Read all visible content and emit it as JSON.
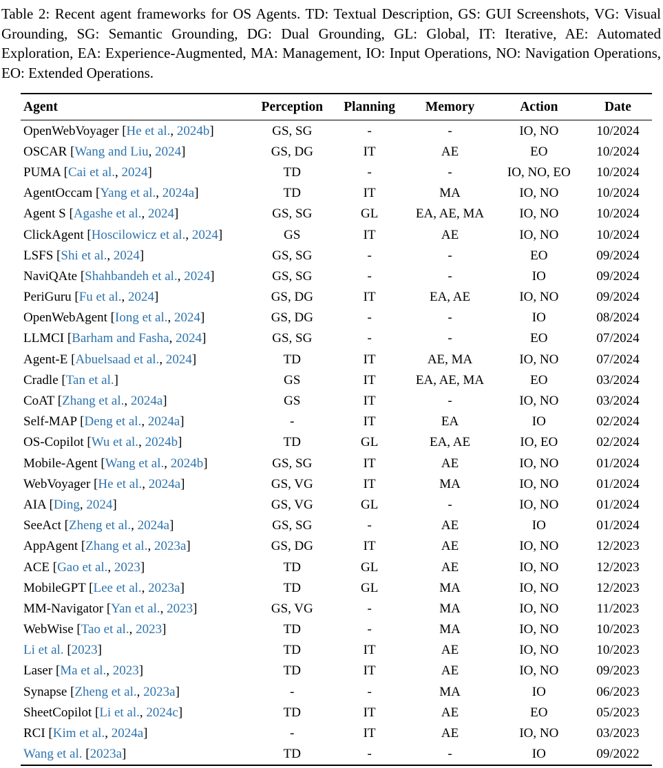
{
  "caption": "Table 2: Recent agent frameworks for OS Agents. TD: Textual Description, GS: GUI Screenshots, VG: Visual Grounding, SG: Semantic Grounding, DG: Dual Grounding, GL: Global, IT: Iterative, AE: Automated Exploration, EA: Experience-Augmented, MA: Management, IO: Input Operations, NO: Navigation Operations, EO: Extended Operations.",
  "link_color": "#2e74ae",
  "table": {
    "headers": [
      "Agent",
      "Perception",
      "Planning",
      "Memory",
      "Action",
      "Date"
    ],
    "rows": [
      {
        "agent": [
          {
            "t": "OpenWebVoyager [",
            "link": false
          },
          {
            "t": "He et al.",
            "link": true
          },
          {
            "t": ", ",
            "link": false
          },
          {
            "t": "2024b",
            "link": true
          },
          {
            "t": "]",
            "link": false
          }
        ],
        "perception": "GS, SG",
        "planning": "-",
        "memory": "-",
        "action": "IO, NO",
        "date": "10/2024"
      },
      {
        "agent": [
          {
            "t": "OSCAR [",
            "link": false
          },
          {
            "t": "Wang and Liu",
            "link": true
          },
          {
            "t": ", ",
            "link": false
          },
          {
            "t": "2024",
            "link": true
          },
          {
            "t": "]",
            "link": false
          }
        ],
        "perception": "GS, DG",
        "planning": "IT",
        "memory": "AE",
        "action": "EO",
        "date": "10/2024"
      },
      {
        "agent": [
          {
            "t": "PUMA [",
            "link": false
          },
          {
            "t": "Cai et al.",
            "link": true
          },
          {
            "t": ", ",
            "link": false
          },
          {
            "t": "2024",
            "link": true
          },
          {
            "t": "]",
            "link": false
          }
        ],
        "perception": "TD",
        "planning": "-",
        "memory": "-",
        "action": "IO, NO, EO",
        "date": "10/2024"
      },
      {
        "agent": [
          {
            "t": "AgentOccam [",
            "link": false
          },
          {
            "t": "Yang et al.",
            "link": true
          },
          {
            "t": ", ",
            "link": false
          },
          {
            "t": "2024a",
            "link": true
          },
          {
            "t": "]",
            "link": false
          }
        ],
        "perception": "TD",
        "planning": "IT",
        "memory": "MA",
        "action": "IO, NO",
        "date": "10/2024"
      },
      {
        "agent": [
          {
            "t": "Agent S [",
            "link": false
          },
          {
            "t": "Agashe et al.",
            "link": true
          },
          {
            "t": ", ",
            "link": false
          },
          {
            "t": "2024",
            "link": true
          },
          {
            "t": "]",
            "link": false
          }
        ],
        "perception": "GS, SG",
        "planning": "GL",
        "memory": "EA, AE, MA",
        "action": "IO, NO",
        "date": "10/2024"
      },
      {
        "agent": [
          {
            "t": "ClickAgent [",
            "link": false
          },
          {
            "t": "Hoscilowicz et al.",
            "link": true
          },
          {
            "t": ", ",
            "link": false
          },
          {
            "t": "2024",
            "link": true
          },
          {
            "t": "]",
            "link": false
          }
        ],
        "perception": "GS",
        "planning": "IT",
        "memory": "AE",
        "action": "IO, NO",
        "date": "10/2024"
      },
      {
        "agent": [
          {
            "t": "LSFS [",
            "link": false
          },
          {
            "t": "Shi et al.",
            "link": true
          },
          {
            "t": ", ",
            "link": false
          },
          {
            "t": "2024",
            "link": true
          },
          {
            "t": "]",
            "link": false
          }
        ],
        "perception": "GS, SG",
        "planning": "-",
        "memory": "-",
        "action": "EO",
        "date": "09/2024"
      },
      {
        "agent": [
          {
            "t": "NaviQAte [",
            "link": false
          },
          {
            "t": "Shahbandeh et al.",
            "link": true
          },
          {
            "t": ", ",
            "link": false
          },
          {
            "t": "2024",
            "link": true
          },
          {
            "t": "]",
            "link": false
          }
        ],
        "perception": "GS, SG",
        "planning": "-",
        "memory": "-",
        "action": "IO",
        "date": "09/2024"
      },
      {
        "agent": [
          {
            "t": "PeriGuru [",
            "link": false
          },
          {
            "t": "Fu et al.",
            "link": true
          },
          {
            "t": ", ",
            "link": false
          },
          {
            "t": "2024",
            "link": true
          },
          {
            "t": "]",
            "link": false
          }
        ],
        "perception": "GS, DG",
        "planning": "IT",
        "memory": "EA, AE",
        "action": "IO, NO",
        "date": "09/2024"
      },
      {
        "agent": [
          {
            "t": "OpenWebAgent [",
            "link": false
          },
          {
            "t": "Iong et al.",
            "link": true
          },
          {
            "t": ", ",
            "link": false
          },
          {
            "t": "2024",
            "link": true
          },
          {
            "t": "]",
            "link": false
          }
        ],
        "perception": "GS, DG",
        "planning": "-",
        "memory": "-",
        "action": "IO",
        "date": "08/2024"
      },
      {
        "agent": [
          {
            "t": "LLMCI [",
            "link": false
          },
          {
            "t": "Barham and Fasha",
            "link": true
          },
          {
            "t": ", ",
            "link": false
          },
          {
            "t": "2024",
            "link": true
          },
          {
            "t": "]",
            "link": false
          }
        ],
        "perception": "GS, SG",
        "planning": "-",
        "memory": "-",
        "action": "EO",
        "date": "07/2024"
      },
      {
        "agent": [
          {
            "t": "Agent-E [",
            "link": false
          },
          {
            "t": "Abuelsaad et al.",
            "link": true
          },
          {
            "t": ", ",
            "link": false
          },
          {
            "t": "2024",
            "link": true
          },
          {
            "t": "]",
            "link": false
          }
        ],
        "perception": "TD",
        "planning": "IT",
        "memory": "AE, MA",
        "action": "IO, NO",
        "date": "07/2024"
      },
      {
        "agent": [
          {
            "t": "Cradle [",
            "link": false
          },
          {
            "t": "Tan et al.",
            "link": true
          },
          {
            "t": "]",
            "link": false
          }
        ],
        "perception": "GS",
        "planning": "IT",
        "memory": "EA, AE, MA",
        "action": "EO",
        "date": "03/2024"
      },
      {
        "agent": [
          {
            "t": "CoAT [",
            "link": false
          },
          {
            "t": "Zhang et al.",
            "link": true
          },
          {
            "t": ", ",
            "link": false
          },
          {
            "t": "2024a",
            "link": true
          },
          {
            "t": "]",
            "link": false
          }
        ],
        "perception": "GS",
        "planning": "IT",
        "memory": "-",
        "action": "IO, NO",
        "date": "03/2024"
      },
      {
        "agent": [
          {
            "t": "Self-MAP [",
            "link": false
          },
          {
            "t": "Deng et al.",
            "link": true
          },
          {
            "t": ", ",
            "link": false
          },
          {
            "t": "2024a",
            "link": true
          },
          {
            "t": "]",
            "link": false
          }
        ],
        "perception": "-",
        "planning": "IT",
        "memory": "EA",
        "action": "IO",
        "date": "02/2024"
      },
      {
        "agent": [
          {
            "t": "OS-Copilot [",
            "link": false
          },
          {
            "t": "Wu et al.",
            "link": true
          },
          {
            "t": ", ",
            "link": false
          },
          {
            "t": "2024b",
            "link": true
          },
          {
            "t": "]",
            "link": false
          }
        ],
        "perception": "TD",
        "planning": "GL",
        "memory": "EA, AE",
        "action": "IO, EO",
        "date": "02/2024"
      },
      {
        "agent": [
          {
            "t": "Mobile-Agent [",
            "link": false
          },
          {
            "t": "Wang et al.",
            "link": true
          },
          {
            "t": ", ",
            "link": false
          },
          {
            "t": "2024b",
            "link": true
          },
          {
            "t": "]",
            "link": false
          }
        ],
        "perception": "GS, SG",
        "planning": "IT",
        "memory": "AE",
        "action": "IO, NO",
        "date": "01/2024"
      },
      {
        "agent": [
          {
            "t": "WebVoyager [",
            "link": false
          },
          {
            "t": "He et al.",
            "link": true
          },
          {
            "t": ", ",
            "link": false
          },
          {
            "t": "2024a",
            "link": true
          },
          {
            "t": "]",
            "link": false
          }
        ],
        "perception": "GS, VG",
        "planning": "IT",
        "memory": "MA",
        "action": "IO, NO",
        "date": "01/2024"
      },
      {
        "agent": [
          {
            "t": "AIA [",
            "link": false
          },
          {
            "t": "Ding",
            "link": true
          },
          {
            "t": ", ",
            "link": false
          },
          {
            "t": "2024",
            "link": true
          },
          {
            "t": "]",
            "link": false
          }
        ],
        "perception": "GS, VG",
        "planning": "GL",
        "memory": "-",
        "action": "IO, NO",
        "date": "01/2024"
      },
      {
        "agent": [
          {
            "t": "SeeAct [",
            "link": false
          },
          {
            "t": "Zheng et al.",
            "link": true
          },
          {
            "t": ", ",
            "link": false
          },
          {
            "t": "2024a",
            "link": true
          },
          {
            "t": "]",
            "link": false
          }
        ],
        "perception": "GS, SG",
        "planning": "-",
        "memory": "AE",
        "action": "IO",
        "date": "01/2024"
      },
      {
        "agent": [
          {
            "t": "AppAgent [",
            "link": false
          },
          {
            "t": "Zhang et al.",
            "link": true
          },
          {
            "t": ", ",
            "link": false
          },
          {
            "t": "2023a",
            "link": true
          },
          {
            "t": "]",
            "link": false
          }
        ],
        "perception": "GS, DG",
        "planning": "IT",
        "memory": "AE",
        "action": "IO, NO",
        "date": "12/2023"
      },
      {
        "agent": [
          {
            "t": "ACE [",
            "link": false
          },
          {
            "t": "Gao et al.",
            "link": true
          },
          {
            "t": ", ",
            "link": false
          },
          {
            "t": "2023",
            "link": true
          },
          {
            "t": "]",
            "link": false
          }
        ],
        "perception": "TD",
        "planning": "GL",
        "memory": "AE",
        "action": "IO, NO",
        "date": "12/2023"
      },
      {
        "agent": [
          {
            "t": "MobileGPT [",
            "link": false
          },
          {
            "t": "Lee et al.",
            "link": true
          },
          {
            "t": ", ",
            "link": false
          },
          {
            "t": "2023a",
            "link": true
          },
          {
            "t": "]",
            "link": false
          }
        ],
        "perception": "TD",
        "planning": "GL",
        "memory": "MA",
        "action": "IO, NO",
        "date": "12/2023"
      },
      {
        "agent": [
          {
            "t": "MM-Navigator [",
            "link": false
          },
          {
            "t": "Yan et al.",
            "link": true
          },
          {
            "t": ", ",
            "link": false
          },
          {
            "t": "2023",
            "link": true
          },
          {
            "t": "]",
            "link": false
          }
        ],
        "perception": "GS, VG",
        "planning": "-",
        "memory": "MA",
        "action": "IO, NO",
        "date": "11/2023"
      },
      {
        "agent": [
          {
            "t": "WebWise [",
            "link": false
          },
          {
            "t": "Tao et al.",
            "link": true
          },
          {
            "t": ", ",
            "link": false
          },
          {
            "t": "2023",
            "link": true
          },
          {
            "t": "]",
            "link": false
          }
        ],
        "perception": "TD",
        "planning": "-",
        "memory": "MA",
        "action": "IO, NO",
        "date": "10/2023"
      },
      {
        "agent": [
          {
            "t": "Li et al.",
            "link": true
          },
          {
            "t": " [",
            "link": false
          },
          {
            "t": "2023",
            "link": true
          },
          {
            "t": "]",
            "link": false
          }
        ],
        "perception": "TD",
        "planning": "IT",
        "memory": "AE",
        "action": "IO, NO",
        "date": "10/2023"
      },
      {
        "agent": [
          {
            "t": "Laser [",
            "link": false
          },
          {
            "t": "Ma et al.",
            "link": true
          },
          {
            "t": ", ",
            "link": false
          },
          {
            "t": "2023",
            "link": true
          },
          {
            "t": "]",
            "link": false
          }
        ],
        "perception": "TD",
        "planning": "IT",
        "memory": "AE",
        "action": "IO, NO",
        "date": "09/2023"
      },
      {
        "agent": [
          {
            "t": "Synapse [",
            "link": false
          },
          {
            "t": "Zheng et al.",
            "link": true
          },
          {
            "t": ", ",
            "link": false
          },
          {
            "t": "2023a",
            "link": true
          },
          {
            "t": "]",
            "link": false
          }
        ],
        "perception": "-",
        "planning": "-",
        "memory": "MA",
        "action": "IO",
        "date": "06/2023"
      },
      {
        "agent": [
          {
            "t": "SheetCopilot [",
            "link": false
          },
          {
            "t": "Li et al.",
            "link": true
          },
          {
            "t": ", ",
            "link": false
          },
          {
            "t": "2024c",
            "link": true
          },
          {
            "t": "]",
            "link": false
          }
        ],
        "perception": "TD",
        "planning": "IT",
        "memory": "AE",
        "action": "EO",
        "date": "05/2023"
      },
      {
        "agent": [
          {
            "t": "RCI [",
            "link": false
          },
          {
            "t": "Kim et al.",
            "link": true
          },
          {
            "t": ", ",
            "link": false
          },
          {
            "t": "2024a",
            "link": true
          },
          {
            "t": "]",
            "link": false
          }
        ],
        "perception": "-",
        "planning": "IT",
        "memory": "AE",
        "action": "IO, NO",
        "date": "03/2023"
      },
      {
        "agent": [
          {
            "t": "Wang et al.",
            "link": true
          },
          {
            "t": " [",
            "link": false
          },
          {
            "t": "2023a",
            "link": true
          },
          {
            "t": "]",
            "link": false
          }
        ],
        "perception": "TD",
        "planning": "-",
        "memory": "-",
        "action": "IO",
        "date": "09/2022"
      }
    ]
  }
}
